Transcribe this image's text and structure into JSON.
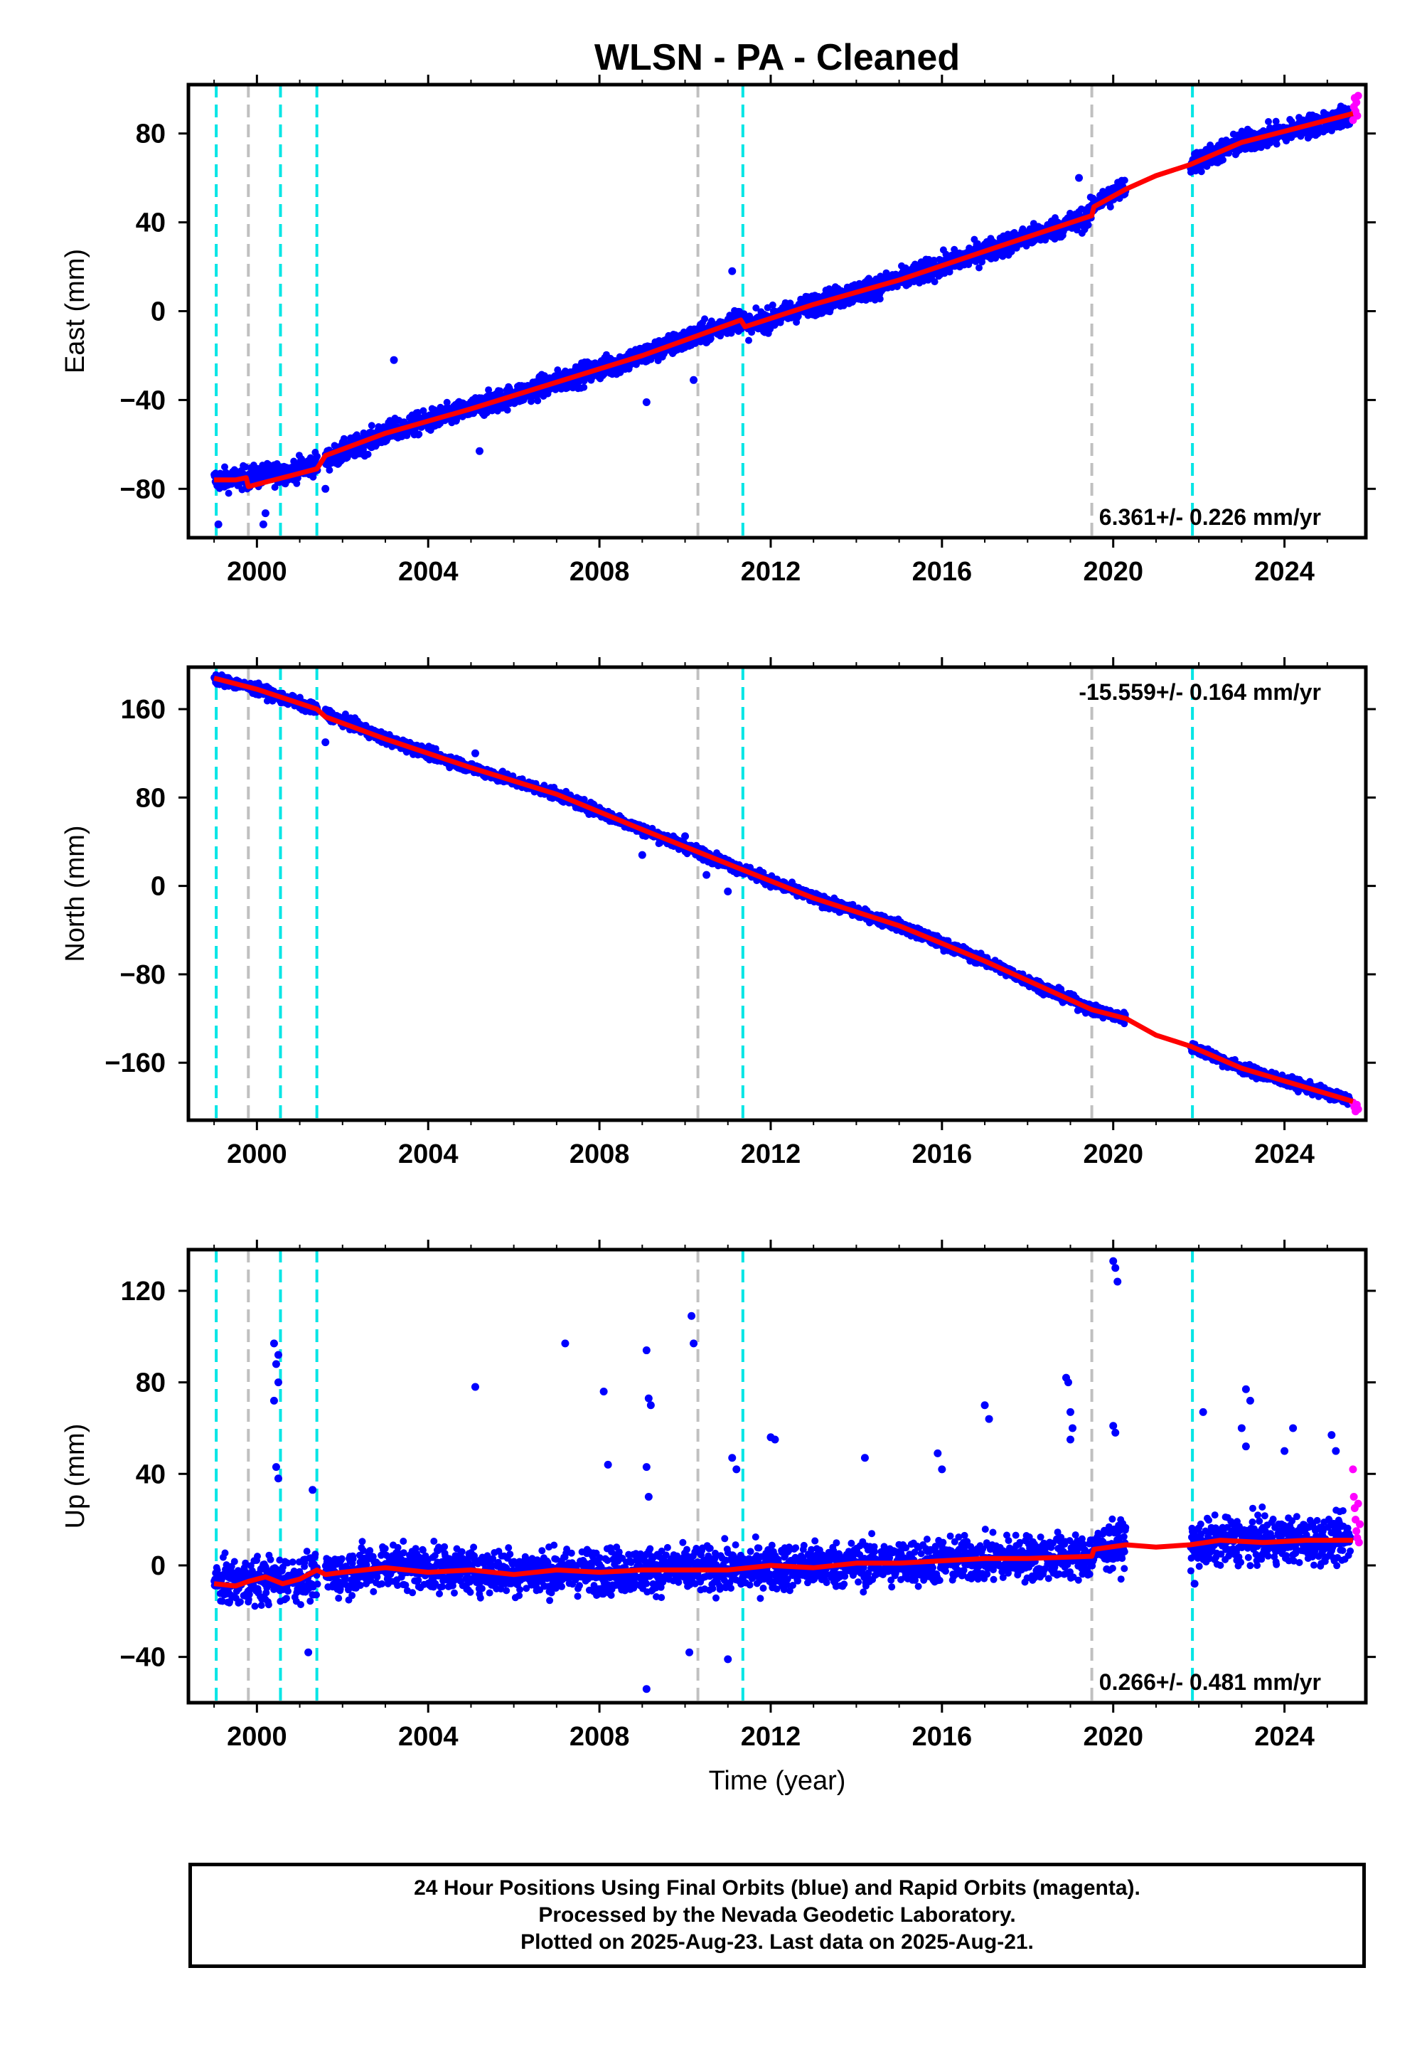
{
  "title": "WLSN  - PA - Cleaned",
  "footer": {
    "line1": "24 Hour Positions Using Final Orbits (blue) and Rapid Orbits (magenta).",
    "line2": "Processed by the Nevada Geodetic Laboratory.",
    "line3": "Plotted on 2025-Aug-23. Last data on 2025-Aug-21."
  },
  "colors": {
    "final_orbits": "#0000ff",
    "rapid_orbits": "#ff00ff",
    "model": "#ff0000",
    "equipment_change": "#00e5e5",
    "other_event": "#c0c0c0"
  },
  "chart_data": [
    {
      "type": "scatter",
      "panel": "east",
      "ylabel": "East (mm)",
      "xlabel": "",
      "xlim": [
        1998.4,
        2025.9
      ],
      "ylim": [
        -102,
        102
      ],
      "xticks": [
        "2000",
        "2004",
        "2008",
        "2012",
        "2016",
        "2020",
        "2024"
      ],
      "yticks": [
        "-80",
        "-40",
        "0",
        "40",
        "80"
      ],
      "rate_label": "6.361+/- 0.226 mm/yr",
      "rate_position": "bottom-right",
      "events_cyan": [
        1999.05,
        2000.55,
        2001.4,
        2011.35,
        2021.85
      ],
      "events_gray": [
        1999.8,
        2010.3,
        2019.5
      ],
      "gaps": [
        [
          2000.75,
          2000.82
        ],
        [
          2001.42,
          2001.6
        ],
        [
          2020.3,
          2021.8
        ]
      ],
      "model": {
        "x": [
          1999.0,
          1999.5,
          1999.75,
          1999.8,
          2000.2,
          2000.8,
          2001.4,
          2001.6,
          2003,
          2005,
          2007,
          2009,
          2010.3,
          2011.3,
          2011.4,
          2013,
          2015,
          2017,
          2019.5,
          2019.55,
          2020.3,
          2021.0,
          2021.8,
          2023,
          2025.6
        ],
        "y": [
          -76,
          -76,
          -75,
          -79,
          -77,
          -74,
          -71,
          -65,
          -55,
          -44,
          -32,
          -20,
          -11,
          -4,
          -7,
          3,
          14,
          27,
          43,
          47,
          55,
          61,
          66,
          76,
          89
        ]
      },
      "final_series": {
        "anchors_x": [
          1999.0,
          1999.8,
          2000.8,
          2001.5,
          2003,
          2005,
          2007,
          2009,
          2010.3,
          2011.35,
          2011.45,
          2013,
          2015,
          2017,
          2019.4,
          2019.55,
          2020.3,
          2021.8,
          2023,
          2025.55
        ],
        "anchors_y": [
          -76,
          -75,
          -72,
          -68,
          -55,
          -44,
          -32,
          -20,
          -11,
          -3,
          -7,
          3,
          14,
          27,
          42,
          48,
          56,
          66,
          76,
          88
        ],
        "scatter_mm": 3.5,
        "outliers": [
          [
            1999.1,
            -96
          ],
          [
            2000.2,
            -91
          ],
          [
            2000.15,
            -96
          ],
          [
            2001.6,
            -80
          ],
          [
            2003.2,
            -22
          ],
          [
            2005.2,
            -63
          ],
          [
            2009.1,
            -41
          ],
          [
            2010.2,
            -31
          ],
          [
            2010.5,
            -14
          ],
          [
            2011.1,
            18
          ],
          [
            2011.3,
            -6
          ],
          [
            2019.2,
            60
          ]
        ]
      },
      "rapid_series": {
        "x": [
          2025.6,
          2025.62,
          2025.64,
          2025.66,
          2025.68,
          2025.7,
          2025.72
        ],
        "y": [
          86,
          92,
          96,
          90,
          94,
          88,
          97
        ]
      }
    },
    {
      "type": "scatter",
      "panel": "north",
      "ylabel": "North (mm)",
      "xlabel": "",
      "xlim": [
        1998.4,
        2025.9
      ],
      "ylim": [
        -212,
        198
      ],
      "xticks": [
        "2000",
        "2004",
        "2008",
        "2012",
        "2016",
        "2020",
        "2024"
      ],
      "yticks": [
        "-160",
        "-80",
        "0",
        "80",
        "160"
      ],
      "rate_label": "-15.559+/- 0.164 mm/yr",
      "rate_position": "top-right",
      "events_cyan": [
        1999.05,
        2000.55,
        2001.4,
        2011.35,
        2021.85
      ],
      "events_gray": [
        1999.8,
        2010.3,
        2019.5
      ],
      "gaps": [
        [
          2000.75,
          2000.82
        ],
        [
          2001.42,
          2001.6
        ],
        [
          2020.3,
          2021.8
        ]
      ],
      "model": {
        "x": [
          1999.0,
          2000,
          2001.4,
          2001.6,
          2003,
          2005,
          2007,
          2009,
          2011,
          2013,
          2015,
          2017,
          2019.5,
          2020.3,
          2021.0,
          2021.8,
          2023,
          2025.6
        ],
        "y": [
          188,
          178,
          160,
          153,
          133,
          107,
          83,
          51,
          20,
          -11,
          -36,
          -68,
          -112,
          -120,
          -135,
          -145,
          -165,
          -195
        ]
      },
      "final_series": {
        "anchors_x": [
          1999.0,
          2000,
          2001.5,
          2003,
          2005,
          2007,
          2009,
          2011,
          2013,
          2015,
          2017,
          2019.5,
          2020.3,
          2021.8,
          2023,
          2025.55
        ],
        "anchors_y": [
          188,
          178,
          158,
          133,
          107,
          83,
          51,
          20,
          -11,
          -36,
          -68,
          -112,
          -120,
          -145,
          -165,
          -194
        ],
        "scatter_mm": 3.5,
        "outliers": [
          [
            2001.6,
            130
          ],
          [
            2005.1,
            120
          ],
          [
            2009.0,
            28
          ],
          [
            2010.0,
            45
          ],
          [
            2011.0,
            -5
          ],
          [
            2010.5,
            10
          ]
        ]
      },
      "rapid_series": {
        "x": [
          2025.6,
          2025.63,
          2025.66,
          2025.69,
          2025.72
        ],
        "y": [
          -196,
          -200,
          -204,
          -198,
          -202
        ]
      }
    },
    {
      "type": "scatter",
      "panel": "up",
      "ylabel": "Up (mm)",
      "xlabel": "Time (year)",
      "xlim": [
        1998.4,
        2025.9
      ],
      "ylim": [
        -60,
        138
      ],
      "xticks": [
        "2000",
        "2004",
        "2008",
        "2012",
        "2016",
        "2020",
        "2024"
      ],
      "yticks": [
        "-40",
        "0",
        "40",
        "80",
        "120"
      ],
      "rate_label": "0.266+/- 0.481 mm/yr",
      "rate_position": "bottom-right",
      "events_cyan": [
        1999.05,
        2000.55,
        2001.4,
        2011.35,
        2021.85
      ],
      "events_gray": [
        1999.8,
        2010.3,
        2019.5
      ],
      "gaps": [
        [
          2000.75,
          2000.82
        ],
        [
          2001.42,
          2001.6
        ],
        [
          2020.3,
          2021.8
        ]
      ],
      "model": {
        "x": [
          1999.0,
          1999.5,
          1999.8,
          2000.2,
          2000.6,
          2001.0,
          2001.4,
          2001.6,
          2002.0,
          2003.0,
          2004.0,
          2005.0,
          2006.0,
          2007.0,
          2008.0,
          2009.0,
          2010.0,
          2011.0,
          2012.0,
          2013.0,
          2014.0,
          2015.0,
          2016.0,
          2017.0,
          2018.0,
          2019.5,
          2019.55,
          2020.3,
          2021.0,
          2021.8,
          2022.5,
          2023.5,
          2024.5,
          2025.6
        ],
        "y": [
          -8,
          -9,
          -7,
          -5,
          -8,
          -6,
          -2,
          -4,
          -3,
          -1,
          -3,
          -2,
          -4,
          -2,
          -3,
          -2,
          -2,
          -2,
          0,
          -1,
          1,
          1,
          2,
          3,
          3,
          4,
          7,
          9,
          8,
          9,
          11,
          10,
          11,
          11
        ]
      },
      "final_series": {
        "anchors_x": [
          1999.0,
          2001.5,
          2003,
          2005,
          2007,
          2009,
          2011,
          2013,
          2015,
          2017,
          2019.5,
          2019.55,
          2020.3,
          2021.8,
          2023,
          2025.55
        ],
        "anchors_y": [
          -8,
          -5,
          0,
          -2,
          -3,
          -2,
          -2,
          0,
          1,
          3,
          4,
          7,
          9,
          9,
          11,
          11
        ],
        "scatter_mm": 7,
        "outliers": [
          [
            2000.4,
            97
          ],
          [
            2000.5,
            92
          ],
          [
            2000.45,
            88
          ],
          [
            2000.5,
            80
          ],
          [
            2000.4,
            72
          ],
          [
            2000.45,
            43
          ],
          [
            2000.5,
            38
          ],
          [
            2001.3,
            33
          ],
          [
            2001.2,
            -38
          ],
          [
            2005.1,
            78
          ],
          [
            2007.2,
            97
          ],
          [
            2008.1,
            76
          ],
          [
            2008.2,
            44
          ],
          [
            2009.1,
            94
          ],
          [
            2009.15,
            73
          ],
          [
            2009.2,
            70
          ],
          [
            2009.1,
            43
          ],
          [
            2009.15,
            30
          ],
          [
            2009.1,
            -54
          ],
          [
            2010.15,
            109
          ],
          [
            2010.2,
            97
          ],
          [
            2010.1,
            -38
          ],
          [
            2011.0,
            -41
          ],
          [
            2011.1,
            47
          ],
          [
            2011.2,
            42
          ],
          [
            2012.0,
            56
          ],
          [
            2012.1,
            55
          ],
          [
            2014.2,
            47
          ],
          [
            2015.9,
            49
          ],
          [
            2016.0,
            42
          ],
          [
            2017.0,
            70
          ],
          [
            2017.1,
            64
          ],
          [
            2018.9,
            82
          ],
          [
            2018.95,
            80
          ],
          [
            2019.0,
            67
          ],
          [
            2019.05,
            60
          ],
          [
            2019.0,
            55
          ],
          [
            2020.0,
            133
          ],
          [
            2020.05,
            130
          ],
          [
            2020.1,
            124
          ],
          [
            2020.0,
            61
          ],
          [
            2020.05,
            58
          ],
          [
            2022.1,
            67
          ],
          [
            2023.1,
            77
          ],
          [
            2023.2,
            72
          ],
          [
            2023.0,
            60
          ],
          [
            2023.1,
            52
          ],
          [
            2024.2,
            60
          ],
          [
            2024.0,
            50
          ],
          [
            2025.1,
            57
          ],
          [
            2025.2,
            50
          ],
          [
            2021.9,
            -8
          ]
        ]
      },
      "rapid_series": {
        "x": [
          2025.6,
          2025.62,
          2025.64,
          2025.66,
          2025.68,
          2025.7,
          2025.72,
          2025.74,
          2025.76
        ],
        "y": [
          42,
          30,
          25,
          20,
          15,
          12,
          27,
          10,
          18
        ]
      }
    }
  ]
}
